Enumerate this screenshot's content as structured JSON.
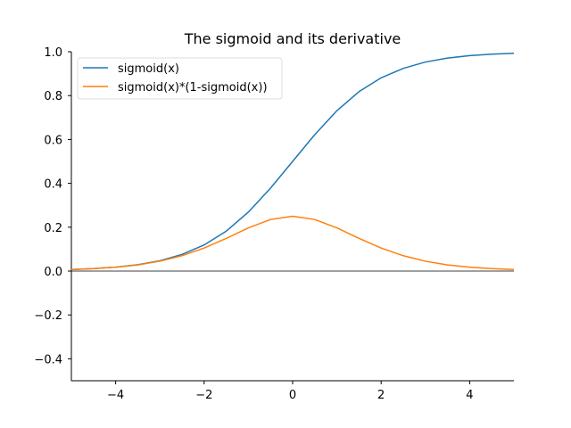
{
  "chart_data": {
    "type": "line",
    "title": "The sigmoid and its derivative",
    "xlabel": "",
    "ylabel": "",
    "xlim": [
      -5,
      5
    ],
    "ylim": [
      -0.5,
      1.0
    ],
    "x_ticks": [
      -4,
      -2,
      0,
      2,
      4
    ],
    "x_tick_labels": [
      "−4",
      "−2",
      "0",
      "2",
      "4"
    ],
    "y_ticks": [
      -0.4,
      -0.2,
      0.0,
      0.2,
      0.4,
      0.6,
      0.8,
      1.0
    ],
    "y_tick_labels": [
      "−0.4",
      "−0.2",
      "0.0",
      "0.2",
      "0.4",
      "0.6",
      "0.8",
      "1.0"
    ],
    "reference_line_y": 0,
    "grid": false,
    "legend_position": "top-left",
    "series": [
      {
        "name": "sigmoid(x)",
        "color": "#1f77b4",
        "x": [
          -5,
          -4.5,
          -4,
          -3.5,
          -3,
          -2.5,
          -2,
          -1.5,
          -1,
          -0.5,
          0,
          0.5,
          1,
          1.5,
          2,
          2.5,
          3,
          3.5,
          4,
          4.5,
          5
        ],
        "y": [
          0.007,
          0.011,
          0.018,
          0.029,
          0.047,
          0.076,
          0.119,
          0.182,
          0.269,
          0.378,
          0.5,
          0.622,
          0.731,
          0.818,
          0.881,
          0.924,
          0.953,
          0.971,
          0.982,
          0.989,
          0.993
        ]
      },
      {
        "name": "sigmoid(x)*(1-sigmoid(x))",
        "color": "#ff7f0e",
        "x": [
          -5,
          -4.5,
          -4,
          -3.5,
          -3,
          -2.5,
          -2,
          -1.5,
          -1,
          -0.5,
          0,
          0.5,
          1,
          1.5,
          2,
          2.5,
          3,
          3.5,
          4,
          4.5,
          5
        ],
        "y": [
          0.007,
          0.011,
          0.018,
          0.028,
          0.045,
          0.07,
          0.105,
          0.149,
          0.197,
          0.235,
          0.25,
          0.235,
          0.197,
          0.149,
          0.105,
          0.07,
          0.045,
          0.028,
          0.018,
          0.011,
          0.007
        ]
      }
    ]
  }
}
